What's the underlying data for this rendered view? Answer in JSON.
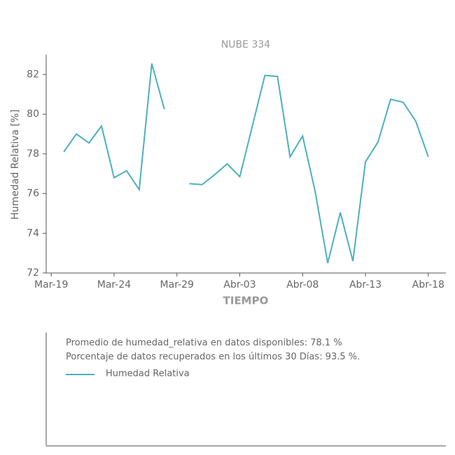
{
  "chart_data": {
    "type": "line",
    "title": "NUBE 334",
    "xlabel": "TIEMPO",
    "ylabel": "Humedad Relativa [%]",
    "x": [
      1,
      2,
      3,
      4,
      5,
      6,
      7,
      8,
      9,
      10,
      11,
      12,
      13,
      14,
      15,
      16,
      17,
      18,
      19,
      20,
      21,
      22,
      23,
      24,
      25,
      26,
      27,
      28,
      29,
      30
    ],
    "series": [
      {
        "name": "Humedad Relativa",
        "color": "#4bb0bf",
        "values": [
          78.1,
          79.0,
          78.55,
          79.4,
          76.8,
          77.15,
          76.2,
          82.55,
          80.25,
          null,
          76.5,
          76.45,
          76.95,
          77.5,
          76.85,
          79.4,
          81.95,
          81.9,
          77.85,
          78.9,
          76.1,
          72.5,
          75.05,
          72.6,
          77.6,
          78.6,
          80.75,
          80.6,
          79.65,
          77.85
        ]
      }
    ],
    "xlim": [
      -0.4,
      31.4
    ],
    "xticks": [
      {
        "value": 0,
        "label": "Mar-19"
      },
      {
        "value": 5,
        "label": "Mar-24"
      },
      {
        "value": 10,
        "label": "Mar-29"
      },
      {
        "value": 15,
        "label": "Abr-03"
      },
      {
        "value": 20,
        "label": "Abr-08"
      },
      {
        "value": 25,
        "label": "Abr-13"
      },
      {
        "value": 30,
        "label": "Abr-18"
      }
    ],
    "ylim": [
      72,
      83
    ],
    "yticks": [
      72,
      74,
      76,
      78,
      80,
      82
    ],
    "annotations": [
      "Promedio de humedad_relativa en datos disponibles: 78.1 %",
      "Porcentaje de datos recuperados en los últimos 30 Días: 93.5 %."
    ]
  }
}
